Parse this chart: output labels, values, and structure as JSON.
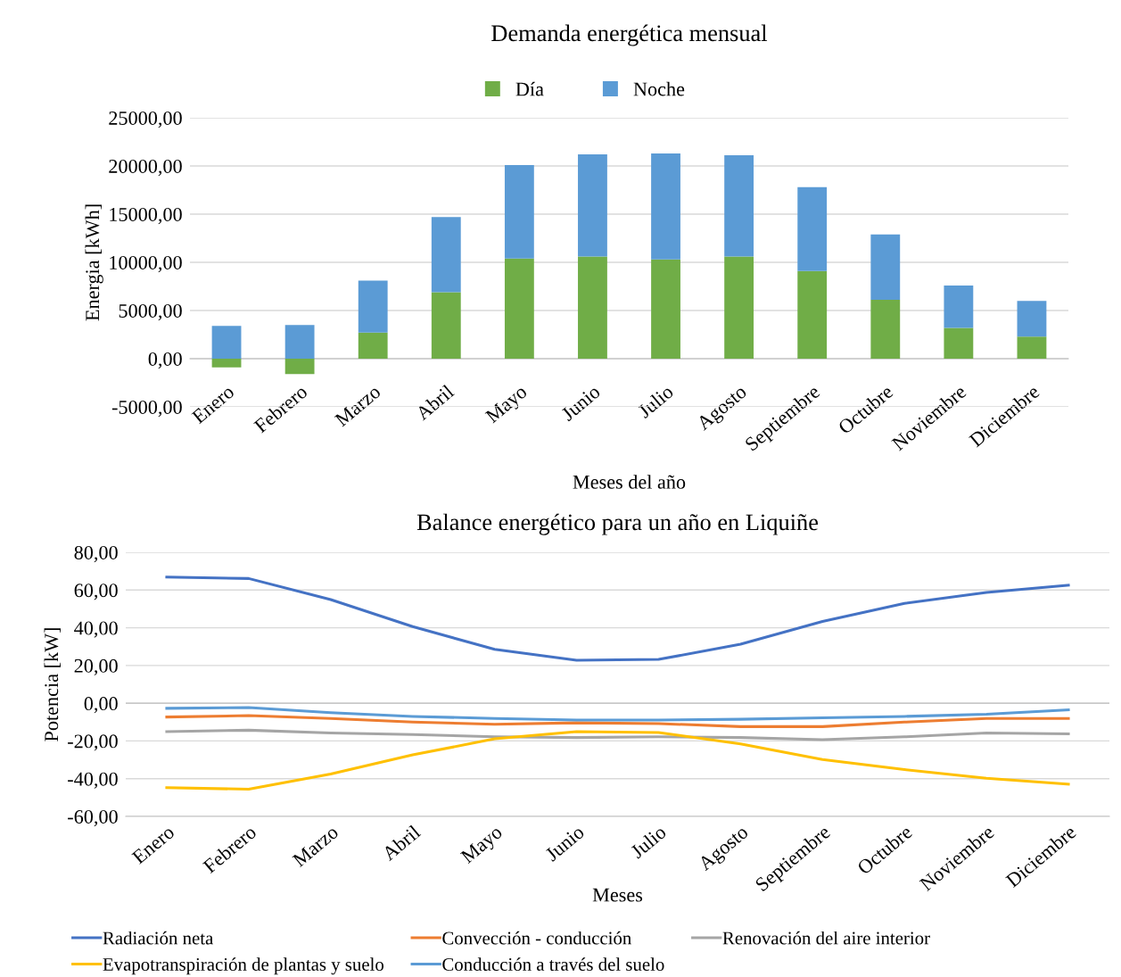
{
  "chart_data": [
    {
      "type": "bar",
      "title": "Demanda energética mensual",
      "xlabel": "Meses del año",
      "ylabel": "Energia [kWh]",
      "stacked": true,
      "legend": "top",
      "grid": "y",
      "categories": [
        "Enero",
        "Febrero",
        "Marzo",
        "Abril",
        "Mayo",
        "Junio",
        "Julio",
        "Agosto",
        "Septiembre",
        "Octubre",
        "Noviembre",
        "Diciembre"
      ],
      "series": [
        {
          "name": "Día",
          "color": "#70ad47",
          "values": [
            -900,
            -1600,
            2700,
            6900,
            10400,
            10600,
            10300,
            10600,
            9100,
            6100,
            3200,
            2300
          ]
        },
        {
          "name": "Noche",
          "color": "#5b9bd5",
          "values": [
            3400,
            3500,
            5400,
            7800,
            9700,
            10600,
            11000,
            10500,
            8700,
            6800,
            4400,
            3700
          ]
        }
      ],
      "ylim": [
        -5000,
        25000
      ],
      "yticks": [
        {
          "value": -5000,
          "label": "-5000,00"
        },
        {
          "value": 0,
          "label": "0,00"
        },
        {
          "value": 5000,
          "label": "5000,00"
        },
        {
          "value": 10000,
          "label": "10000,00"
        },
        {
          "value": 15000,
          "label": "15000,00"
        },
        {
          "value": 20000,
          "label": "20000,00"
        },
        {
          "value": 25000,
          "label": "25000,00"
        }
      ]
    },
    {
      "type": "line",
      "title": "Balance energético para un año en Liquiñe",
      "xlabel": "Meses",
      "ylabel": "Potencia [kW]",
      "legend": "bottom",
      "grid": "y",
      "marker": "none",
      "line_style": "solid",
      "categories": [
        "Enero",
        "Febrero",
        "Marzo",
        "Abril",
        "Mayo",
        "Junio",
        "Julio",
        "Agosto",
        "Septiembre",
        "Octubre",
        "Noviembre",
        "Diciembre"
      ],
      "series": [
        {
          "name": "Radiación neta",
          "color": "#4472c4",
          "values": [
            66.9,
            66.1,
            54.9,
            40.6,
            28.6,
            22.8,
            23.2,
            31.3,
            43.3,
            52.9,
            58.7,
            62.6
          ]
        },
        {
          "name": "Convección - conducción",
          "color": "#ed7d31",
          "values": [
            -7.3,
            -6.6,
            -8.1,
            -10.0,
            -11.2,
            -10.4,
            -10.8,
            -12.4,
            -12.4,
            -10.0,
            -8.1,
            -8.1
          ]
        },
        {
          "name": "Renovación del aire interior",
          "color": "#a5a5a5",
          "values": [
            -15.1,
            -14.3,
            -15.8,
            -16.6,
            -17.8,
            -18.2,
            -17.8,
            -18.2,
            -19.3,
            -17.8,
            -15.8,
            -16.2
          ]
        },
        {
          "name": "Evapotranspiración de plantas y suelo",
          "color": "#ffc000",
          "values": [
            -44.8,
            -45.6,
            -37.5,
            -27.4,
            -18.9,
            -15.1,
            -15.5,
            -21.6,
            -29.8,
            -35.2,
            -39.8,
            -42.9
          ]
        },
        {
          "name": "Conducción a través del suelo",
          "color": "#5b9bd5",
          "values": [
            -2.7,
            -2.3,
            -5.0,
            -7.0,
            -8.1,
            -8.9,
            -8.9,
            -8.5,
            -7.7,
            -7.0,
            -5.8,
            -3.5
          ]
        }
      ],
      "ylim": [
        -60,
        80
      ],
      "yticks": [
        {
          "value": -60,
          "label": "-60,00"
        },
        {
          "value": -40,
          "label": "-40,00"
        },
        {
          "value": -20,
          "label": "-20,00"
        },
        {
          "value": 0,
          "label": "0,00"
        },
        {
          "value": 20,
          "label": "20,00"
        },
        {
          "value": 40,
          "label": "40,00"
        },
        {
          "value": 60,
          "label": "60,00"
        },
        {
          "value": 80,
          "label": "80,00"
        }
      ]
    }
  ]
}
